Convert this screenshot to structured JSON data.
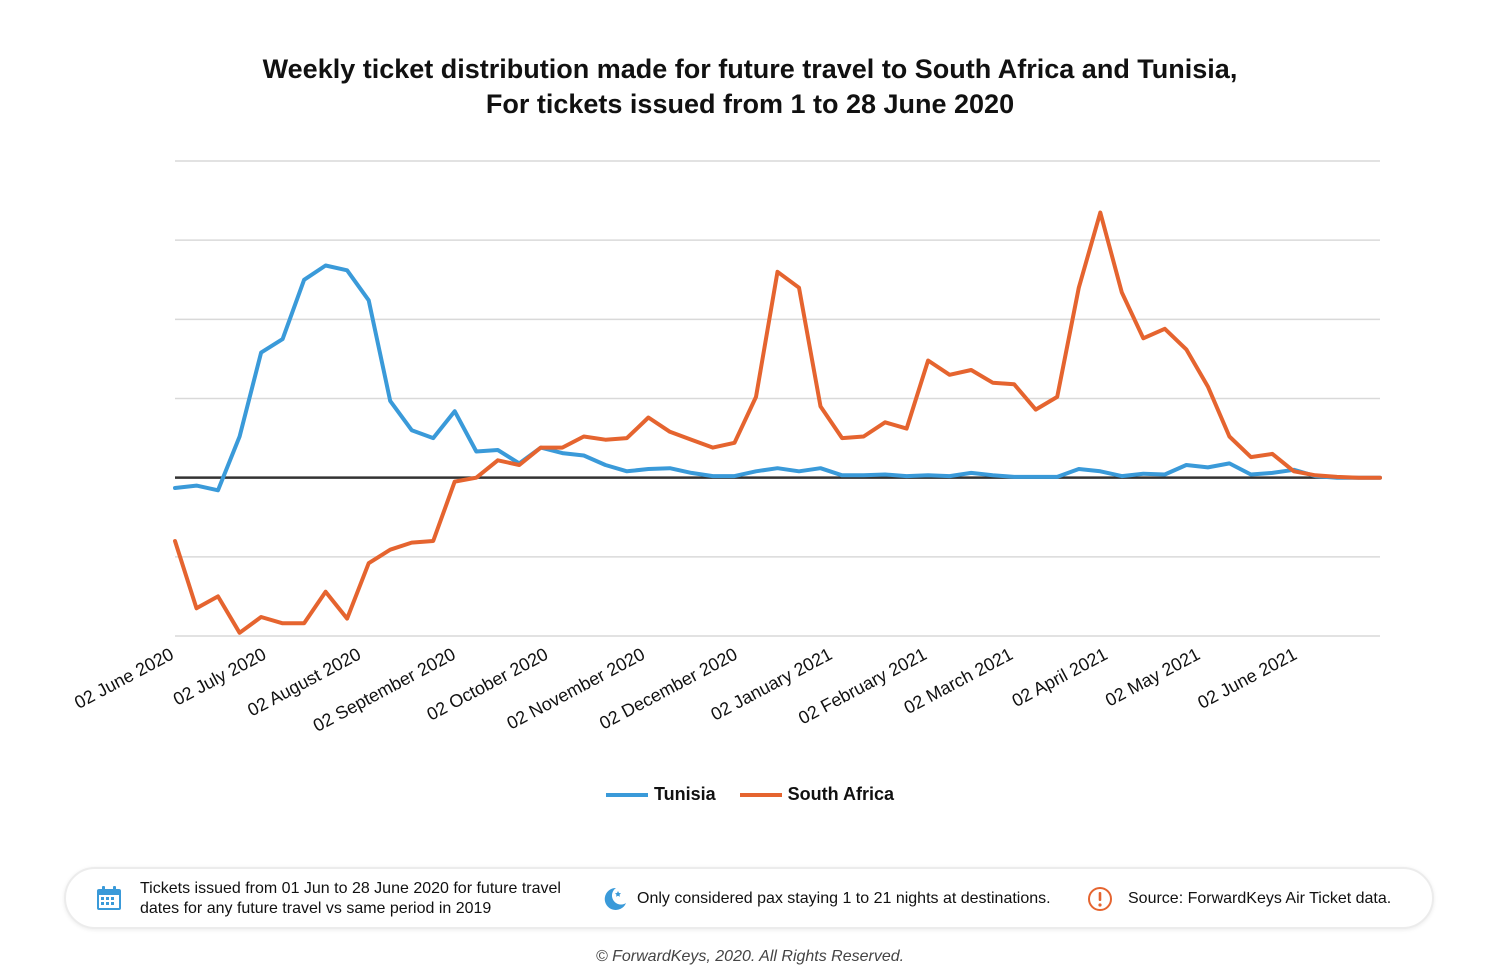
{
  "title": {
    "line1": "Weekly ticket distribution made for future travel to South Africa and Tunisia,",
    "line2": "For tickets issued from 1 to 28 June 2020"
  },
  "chart_data": {
    "type": "line",
    "title": "Weekly ticket distribution made for future travel to South Africa and Tunisia, For tickets issued from 1 to 28 June 2020",
    "xlabel": "",
    "ylabel": "",
    "grid": true,
    "y_axis_labels_visible": false,
    "ylim": [
      -2,
      4
    ],
    "zero_line": 0,
    "x_tick_labels": [
      "02 June 2020",
      "02 July 2020",
      "02 August 2020",
      "02 September 2020",
      "02 October 2020",
      "02 November 2020",
      "02 December 2020",
      "02 January 2021",
      "02 February 2021",
      "02 March 2021",
      "02 April 2021",
      "02 May 2021",
      "02 June 2021"
    ],
    "x_tick_weeks": [
      0,
      4.3,
      8.7,
      13.1,
      17.4,
      21.9,
      26.2,
      30.6,
      35,
      39,
      43.4,
      47.7,
      52.2
    ],
    "series": [
      {
        "name": "Tunisia",
        "color": "#3a9ad9",
        "values": [
          -0.13,
          -0.1,
          -0.16,
          0.52,
          1.58,
          1.75,
          2.5,
          2.68,
          2.62,
          2.24,
          0.97,
          0.6,
          0.5,
          0.84,
          0.33,
          0.35,
          0.18,
          0.38,
          0.31,
          0.28,
          0.16,
          0.08,
          0.11,
          0.12,
          0.06,
          0.02,
          0.02,
          0.08,
          0.12,
          0.08,
          0.12,
          0.03,
          0.03,
          0.04,
          0.02,
          0.03,
          0.02,
          0.06,
          0.03,
          0.01,
          0.01,
          0.01,
          0.11,
          0.08,
          0.02,
          0.05,
          0.04,
          0.16,
          0.13,
          0.18,
          0.04,
          0.06,
          0.1,
          0.02,
          0,
          0,
          0
        ]
      },
      {
        "name": "South Africa",
        "color": "#e5642f",
        "values": [
          -0.8,
          -1.65,
          -1.5,
          -1.96,
          -1.76,
          -1.84,
          -1.84,
          -1.44,
          -1.78,
          -1.08,
          -0.91,
          -0.82,
          -0.8,
          -0.05,
          0,
          0.22,
          0.16,
          0.38,
          0.38,
          0.52,
          0.48,
          0.5,
          0.76,
          0.58,
          0.48,
          0.38,
          0.44,
          1.02,
          2.6,
          2.4,
          0.9,
          0.5,
          0.52,
          0.7,
          0.62,
          1.48,
          1.3,
          1.36,
          1.2,
          1.18,
          0.86,
          1.02,
          2.4,
          3.35,
          2.34,
          1.76,
          1.88,
          1.62,
          1.15,
          0.52,
          0.26,
          0.3,
          0.08,
          0.03,
          0.01,
          0,
          0
        ]
      }
    ],
    "legend": "bottom-center"
  },
  "legend": {
    "tunisia_label": "Tunisia",
    "south_africa_label": "South Africa"
  },
  "footer": {
    "note_1": "Tickets issued from 01 Jun to 28 June 2020 for future travel dates for any future travel vs same period in 2019",
    "note_2": "Only considered pax staying 1 to 21 nights at destinations.",
    "note_3": "Source: ForwardKeys Air Ticket data.",
    "icons": [
      "calendar-icon",
      "moon-icon",
      "warning-icon"
    ],
    "icon_colors": {
      "calendar": "#3a9ad9",
      "moon": "#3a9ad9",
      "warning": "#e5642f"
    }
  },
  "copyright": "© ForwardKeys, 2020. All Rights Reserved."
}
